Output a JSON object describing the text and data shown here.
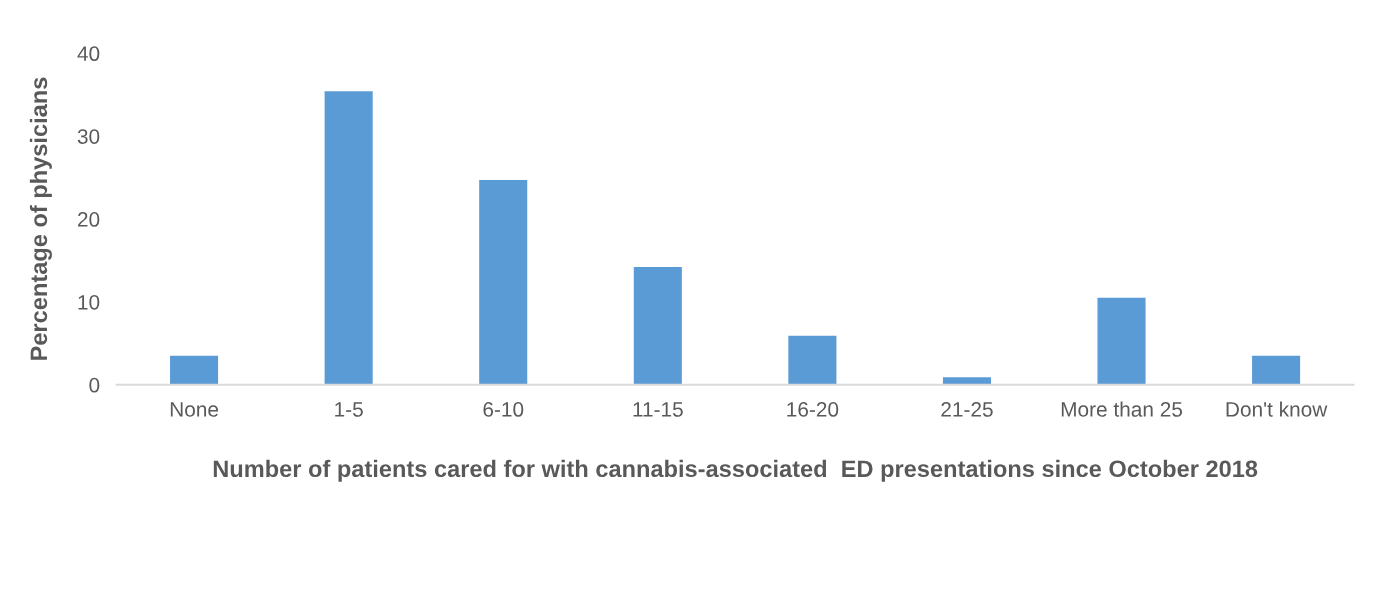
{
  "chart_data": {
    "type": "bar",
    "categories": [
      "None",
      "1-5",
      "6-10",
      "11-15",
      "16-20",
      "21-25",
      "More than 25",
      "Don't know"
    ],
    "values": [
      3.6,
      35.5,
      24.8,
      14.3,
      6.0,
      1.0,
      10.6,
      3.6
    ],
    "color": "#5b9bd5",
    "xlabel": "Number of patients cared for with cannabis-associated  ED presentations since October 2018",
    "ylabel": "Percentage of physicians",
    "ylim": [
      0,
      40
    ],
    "yticks": [
      0,
      10,
      20,
      30,
      40
    ],
    "grid": false
  }
}
